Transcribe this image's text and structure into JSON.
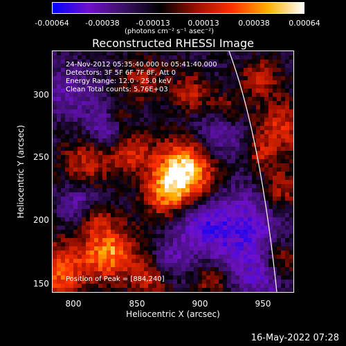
{
  "colorbar": {
    "ticks": [
      "-0.00064",
      "-0.00038",
      "-0.00013",
      "0.00013",
      "0.00038",
      "0.00064"
    ],
    "units": "(photons cm⁻² s⁻¹ asec⁻²)",
    "colors": [
      "#0000ff",
      "#6f10c8",
      "#3a1066",
      "#000000",
      "#9a0f00",
      "#ff3000",
      "#ffb000",
      "#ffffff"
    ]
  },
  "title": "Reconstructed RHESSI Image",
  "info": [
    "24-Nov-2012 05:35:40.000 to 05:41:40.000",
    "Detectors: 3F 5F 6F 7F 8F, Att 0",
    "Energy Range: 12.0 - 25.0 keV",
    "Clean    Total counts: 5.76E+03"
  ],
  "peak": "Position of Peak = [884,240]",
  "x_axis": {
    "label": "Heliocentric X (arcsec)",
    "ticks": [
      "800",
      "850",
      "900",
      "950"
    ]
  },
  "y_axis": {
    "label": "Heliocentric Y (arcsec)",
    "ticks": [
      "300",
      "250",
      "200",
      "150"
    ]
  },
  "date_stamp": "16-May-2022 07:28"
}
